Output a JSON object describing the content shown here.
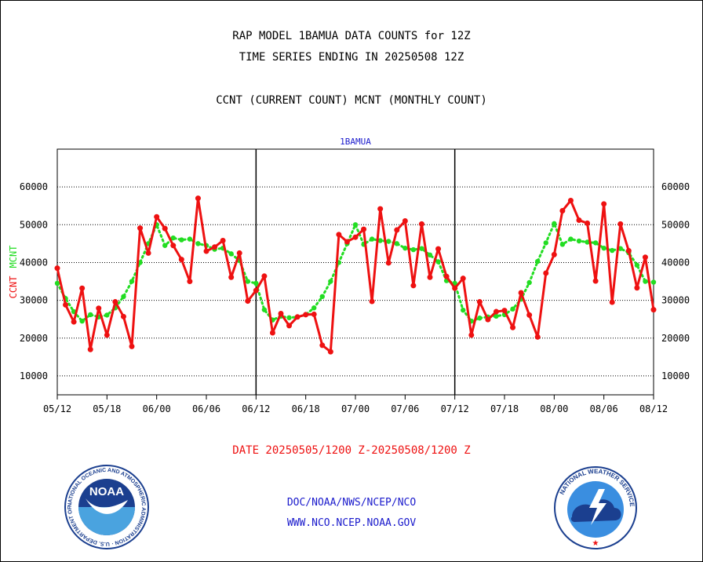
{
  "header": {
    "title_line1": "RAP MODEL 1BAMUA DATA COUNTS for 12Z",
    "title_line2": "TIME SERIES ENDING IN 20250508 12Z",
    "subtitle": "CCNT (CURRENT COUNT) MCNT (MONTHLY COUNT)"
  },
  "footer": {
    "date_range": "DATE 20250505/1200 Z-20250508/1200 Z",
    "org_line1": "DOC/NOAA/NWS/NCEP/NCO",
    "org_line2": "WWW.NCO.NCEP.NOAA.GOV"
  },
  "logos": {
    "noaa_text": "NOAA",
    "noaa_ring_text": "NATIONAL OCEANIC AND ATMOSPHERIC ADMINISTRATION · U.S. DEPARTMENT OF COMMERCE ·",
    "nws_ring_text": "NATIONAL WEATHER SERVICE"
  },
  "colors": {
    "ccnt": "#ee1111",
    "mcnt": "#22dd22",
    "station_label": "#1a1acc",
    "footer_date": "#ee1111",
    "footer_links": "#1a1acc"
  },
  "chart_data": {
    "type": "line",
    "panel_label": "1BAMUA",
    "ylabel_left_ccnt": "CCNT",
    "ylabel_left_mcnt": "MCNT",
    "ylim": [
      5000,
      70000
    ],
    "yticks": [
      10000,
      20000,
      30000,
      40000,
      50000,
      60000
    ],
    "ytick_labels": [
      "10000",
      "20000",
      "30000",
      "40000",
      "50000",
      "60000"
    ],
    "xtick_labels": [
      "05/12",
      "05/18",
      "06/00",
      "06/06",
      "06/12",
      "06/18",
      "07/00",
      "07/06",
      "07/12",
      "07/18",
      "08/00",
      "08/06",
      "08/12"
    ],
    "xtick_hours": [
      0,
      6,
      12,
      18,
      24,
      30,
      36,
      42,
      48,
      54,
      60,
      66,
      72
    ],
    "xlim_hours": [
      0,
      72
    ],
    "panel_dividers_hours": [
      24,
      48
    ],
    "grid": "horizontal dotted",
    "series": [
      {
        "name": "CCNT",
        "x_hours": [
          0,
          1,
          2,
          3,
          4,
          5,
          6,
          7,
          8,
          9,
          10,
          11,
          12,
          13,
          14,
          15,
          16,
          17,
          18,
          19,
          20,
          21,
          22,
          23,
          24,
          25,
          26,
          27,
          28,
          29,
          30,
          31,
          32,
          33,
          34,
          35,
          36,
          37,
          38,
          39,
          40,
          41,
          42,
          43,
          44,
          45,
          46,
          47,
          48,
          49,
          50,
          51,
          52,
          53,
          54,
          55,
          56,
          57,
          58,
          59,
          60,
          61,
          62,
          63,
          64,
          65,
          66,
          67,
          68,
          69,
          70,
          71,
          72
        ],
        "values": [
          38500,
          28800,
          24300,
          33200,
          17000,
          27900,
          20800,
          29600,
          25700,
          17800,
          49100,
          42500,
          52100,
          49000,
          44500,
          40800,
          35000,
          57000,
          43000,
          44100,
          45800,
          36100,
          42500,
          29800,
          32600,
          36400,
          21400,
          26500,
          23300,
          25600,
          26200,
          26300,
          18100,
          16400,
          47400,
          45500,
          46700,
          48800,
          29700,
          54200,
          39900,
          48600,
          51000,
          33900,
          50200,
          36100,
          43600,
          36300,
          33200,
          35800,
          20800,
          29600,
          24900,
          27000,
          27300,
          22800,
          32000,
          26100,
          20300,
          37200,
          42100,
          53700,
          56400,
          51200,
          50400,
          35100,
          55500,
          29500,
          50200,
          43100,
          33300,
          41400,
          27500
        ]
      },
      {
        "name": "MCNT",
        "x_hours": [
          0,
          1,
          2,
          3,
          4,
          5,
          6,
          7,
          8,
          9,
          10,
          11,
          12,
          13,
          14,
          15,
          16,
          17,
          18,
          19,
          20,
          21,
          22,
          23,
          24,
          25,
          26,
          27,
          28,
          29,
          30,
          31,
          32,
          33,
          34,
          35,
          36,
          37,
          38,
          39,
          40,
          41,
          42,
          43,
          44,
          45,
          46,
          47,
          48,
          49,
          50,
          51,
          52,
          53,
          54,
          55,
          56,
          57,
          58,
          59,
          60,
          61,
          62,
          63,
          64,
          65,
          66,
          67,
          68,
          69,
          70,
          71,
          72
        ],
        "values": [
          34500,
          30500,
          27000,
          24500,
          26200,
          25600,
          26100,
          28000,
          31000,
          35000,
          40000,
          45000,
          50000,
          44500,
          46500,
          46000,
          46200,
          45000,
          44500,
          43500,
          43800,
          42300,
          40500,
          35000,
          34500,
          27500,
          24800,
          25800,
          25400,
          25600,
          26200,
          28000,
          31000,
          35000,
          40000,
          45000,
          50000,
          44800,
          46200,
          45800,
          45600,
          45000,
          43800,
          43400,
          43700,
          42000,
          40200,
          35200,
          34500,
          27400,
          24500,
          25300,
          25600,
          25800,
          26200,
          27700,
          30300,
          34700,
          40300,
          45200,
          50300,
          44800,
          46200,
          45700,
          45400,
          45200,
          43800,
          43200,
          43700,
          42600,
          39300,
          35000,
          34800
        ]
      }
    ]
  }
}
